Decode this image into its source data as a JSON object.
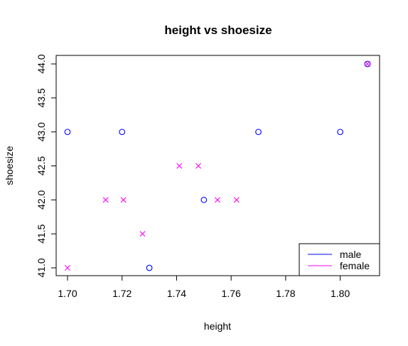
{
  "chart_data": {
    "type": "scatter",
    "title": "height vs shoesize",
    "xlabel": "height",
    "ylabel": "shoesize",
    "xlim": [
      1.7,
      1.81
    ],
    "ylim": [
      41.0,
      44.0
    ],
    "x_ticks": [
      "1.70",
      "1.72",
      "1.74",
      "1.76",
      "1.78",
      "1.80"
    ],
    "y_ticks": [
      "41.0",
      "41.5",
      "42.0",
      "42.5",
      "43.0",
      "43.5",
      "44.0"
    ],
    "legend_position": "bottom-right",
    "grid": false,
    "series": [
      {
        "name": "male",
        "color": "#0000ff",
        "marker": "circle",
        "points": [
          [
            1.7,
            43.0
          ],
          [
            1.72,
            43.0
          ],
          [
            1.73,
            41.0
          ],
          [
            1.75,
            42.0
          ],
          [
            1.77,
            43.0
          ],
          [
            1.8,
            43.0
          ],
          [
            1.81,
            44.0
          ]
        ]
      },
      {
        "name": "female",
        "color": "#ff00ff",
        "marker": "cross",
        "points": [
          [
            1.7,
            41.0
          ],
          [
            1.714,
            42.0
          ],
          [
            1.7205,
            42.0
          ],
          [
            1.7275,
            41.5
          ],
          [
            1.741,
            42.5
          ],
          [
            1.748,
            42.5
          ],
          [
            1.755,
            42.0
          ],
          [
            1.762,
            42.0
          ],
          [
            1.81,
            44.0
          ]
        ]
      }
    ]
  }
}
